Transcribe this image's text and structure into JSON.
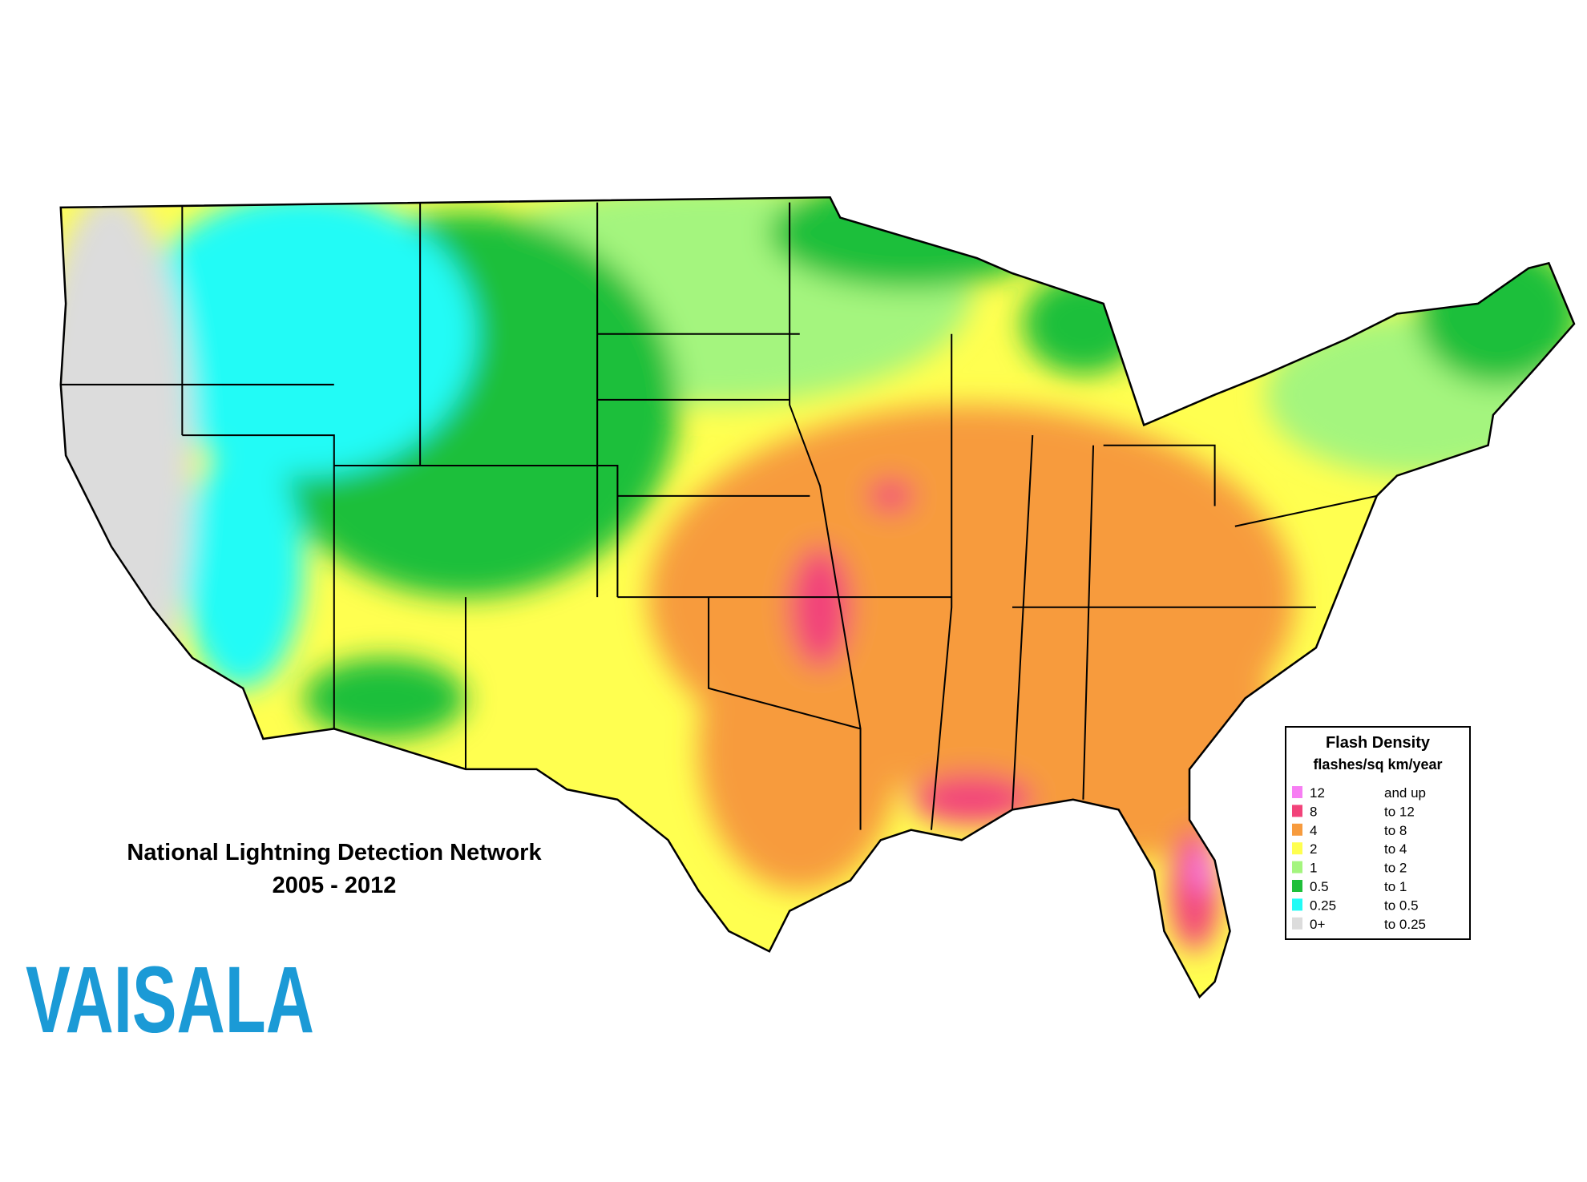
{
  "title": "National Lightning Detection Network",
  "subtitle": "2005 - 2012",
  "logo": "VAISALA",
  "legend": {
    "title": "Flash Density",
    "subtitle": "flashes/sq km/year",
    "items": [
      {
        "from": "12",
        "to": "and up",
        "color": "#f77ef3"
      },
      {
        "from": "8",
        "to": "to 12",
        "color": "#f2437a"
      },
      {
        "from": "4",
        "to": "to 8",
        "color": "#f79b3e"
      },
      {
        "from": "2",
        "to": "to 4",
        "color": "#ffff50"
      },
      {
        "from": "1",
        "to": "to 2",
        "color": "#a4f57e"
      },
      {
        "from": "0.5",
        "to": "to 1",
        "color": "#1fbf3a"
      },
      {
        "from": "0.25",
        "to": "to 0.5",
        "color": "#22fbf6"
      },
      {
        "from": "0+",
        "to": "to 0.25",
        "color": "#dcdcdc"
      }
    ]
  }
}
